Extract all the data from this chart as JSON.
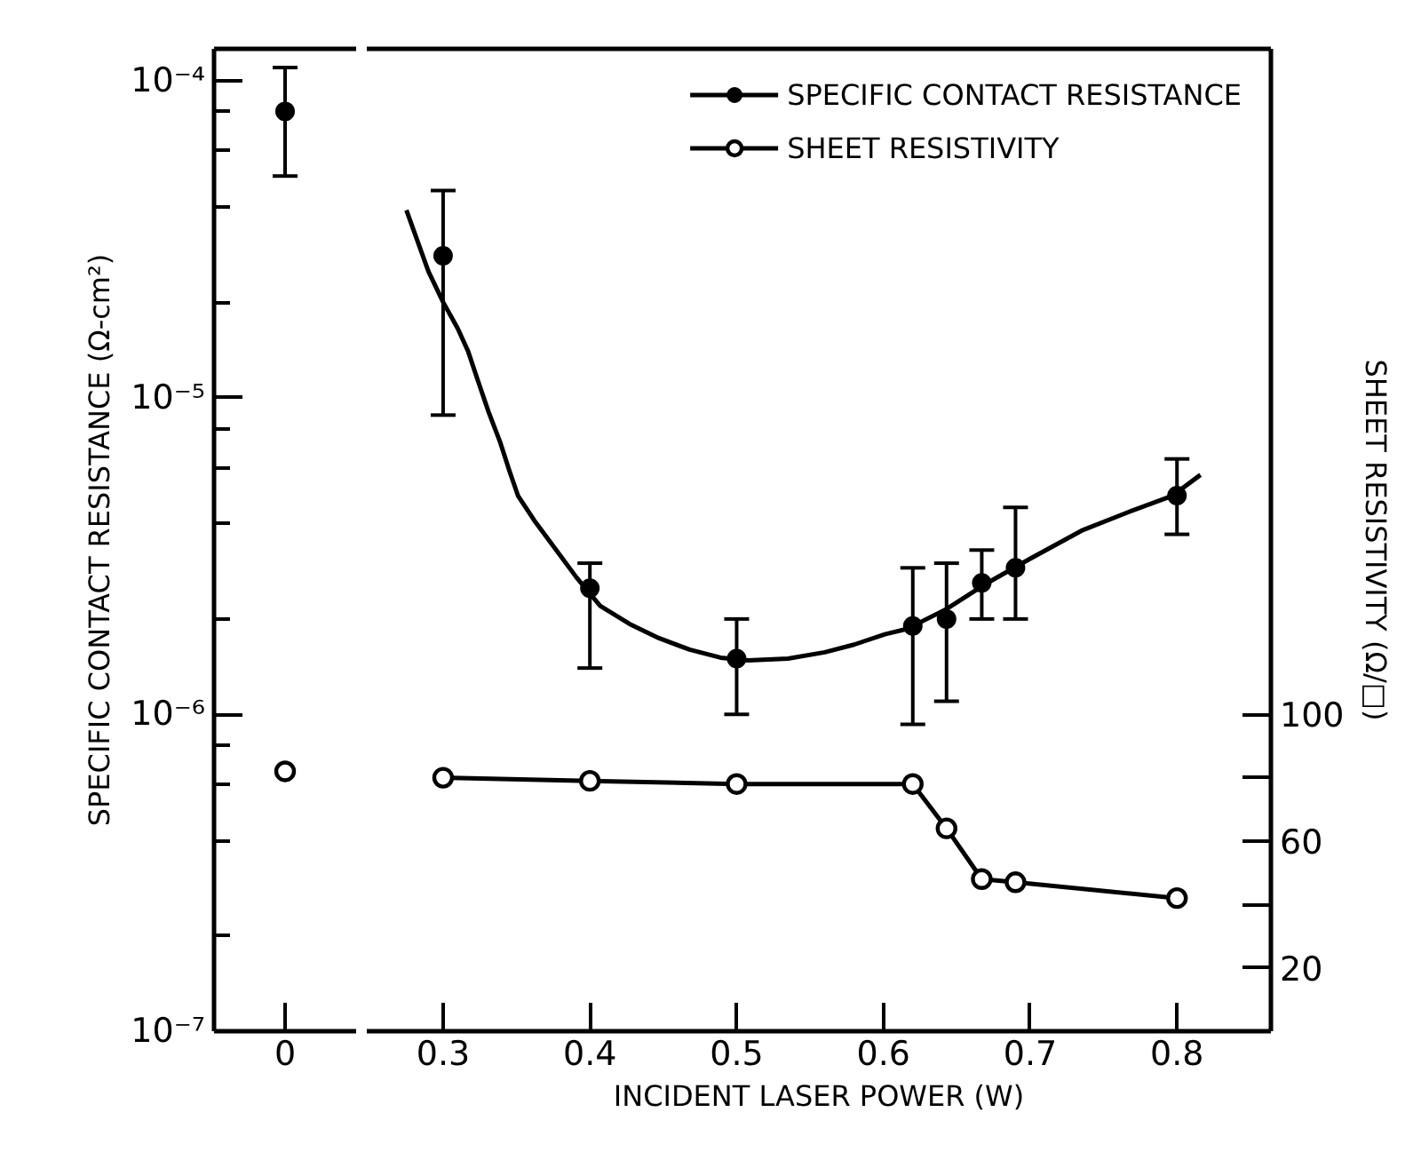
{
  "chart_data": [
    {
      "type": "scatter",
      "categories": [
        "0"
      ],
      "ylim": [
        1e-07,
        0.000126
      ],
      "log": true,
      "yticks": [
        {
          "value": 1e-07,
          "label": "10⁻⁷"
        },
        {
          "value": 2e-07,
          "label": null
        },
        {
          "value": 4e-07,
          "label": null
        },
        {
          "value": 6e-07,
          "label": null
        },
        {
          "value": 8e-07,
          "label": null
        },
        {
          "value": 1e-06,
          "label": "10⁻⁶"
        },
        {
          "value": 2e-06,
          "label": null
        },
        {
          "value": 4e-06,
          "label": null
        },
        {
          "value": 6e-06,
          "label": null
        },
        {
          "value": 8e-06,
          "label": null
        },
        {
          "value": 1e-05,
          "label": "10⁻⁵"
        },
        {
          "value": 2e-05,
          "label": null
        },
        {
          "value": 4e-05,
          "label": null
        },
        {
          "value": 6e-05,
          "label": null
        },
        {
          "value": 8e-05,
          "label": null
        },
        {
          "value": 0.0001,
          "label": "10⁻⁴"
        }
      ],
      "y2lim": [
        0,
        310
      ],
      "ylabel": "SPECIFIC CONTACT RESISTANCE (Ω-cm²)",
      "series": [
        {
          "color": "#000000",
          "marker": "circle",
          "values": [
            8e-05
          ],
          "errors": [
            [
              5e-05,
              0.00011
            ]
          ]
        },
        {
          "type": "line",
          "axis": "y2",
          "color": "#000000",
          "marker": "circle",
          "values": [
            82
          ]
        }
      ]
    },
    {
      "type": "line",
      "xlim": [
        0.248,
        0.864
      ],
      "xticks": [
        0.3,
        0.4,
        0.5,
        0.6,
        0.7,
        0.8
      ],
      "ylim": [
        1e-07,
        0.000126
      ],
      "log": true,
      "y2lim": [
        0,
        310
      ],
      "y2ticks": [
        20,
        {
          "value": 40,
          "label": null
        },
        60,
        {
          "value": 80,
          "label": null
        },
        100
      ],
      "xlabel": "INCIDENT LASER POWER (W)",
      "y2label": "SHEET RESISTIVITY (Ω/□)",
      "legend": "top right",
      "series": [
        {
          "name": "SPECIFIC CONTACT RESISTANCE",
          "type": "scatter",
          "color": "#000000",
          "marker": "circle",
          "x": [
            0.3,
            0.4,
            0.5,
            0.62,
            0.643,
            0.667,
            0.69,
            0.8
          ],
          "values": [
            2.8e-05,
            2.5e-06,
            1.5e-06,
            1.9e-06,
            2e-06,
            2.6e-06,
            2.9e-06,
            4.9e-06
          ],
          "errors": [
            [
              8.8e-06,
              4.5e-05
            ],
            [
              1.4e-06,
              3e-06
            ],
            [
              1e-06,
              2e-06
            ],
            [
              9.3e-07,
              2.9e-06
            ],
            [
              1.1e-06,
              3e-06
            ],
            [
              2e-06,
              3.3e-06
            ],
            [
              2e-06,
              4.5e-06
            ],
            [
              3.7e-06,
              6.4e-06
            ]
          ]
        },
        {
          "color": "#000000",
          "marker": "none",
          "x": [
            0.275,
            0.29,
            0.3,
            0.31,
            0.317,
            0.324,
            0.331,
            0.339,
            0.345,
            0.351,
            0.362,
            0.373,
            0.391,
            0.407,
            0.427,
            0.447,
            0.468,
            0.489,
            0.508,
            0.535,
            0.56,
            0.58,
            0.601,
            0.616,
            0.643,
            0.669,
            0.7,
            0.735,
            0.767,
            0.797,
            0.816
          ],
          "values": [
            3.9e-05,
            2.5e-05,
            2e-05,
            1.65e-05,
            1.4e-05,
            1.12e-05,
            9e-06,
            7.2e-06,
            5.9e-06,
            4.9e-06,
            4.1e-06,
            3.5e-06,
            2.7e-06,
            2.2e-06,
            1.93e-06,
            1.74e-06,
            1.6e-06,
            1.51e-06,
            1.48e-06,
            1.5e-06,
            1.57e-06,
            1.66e-06,
            1.79e-06,
            1.86e-06,
            2.15e-06,
            2.57e-06,
            3.1e-06,
            3.8e-06,
            4.35e-06,
            4.9e-06,
            5.7e-06
          ]
        },
        {
          "name": "SHEET RESISTIVITY",
          "axis": "y2",
          "color": "#000000",
          "marker": "circle",
          "x": [
            0.3,
            0.4,
            0.5,
            0.62,
            0.643,
            0.667,
            0.69,
            0.8
          ],
          "values": [
            80,
            79,
            78,
            78,
            64,
            48,
            47,
            42
          ]
        }
      ]
    }
  ]
}
